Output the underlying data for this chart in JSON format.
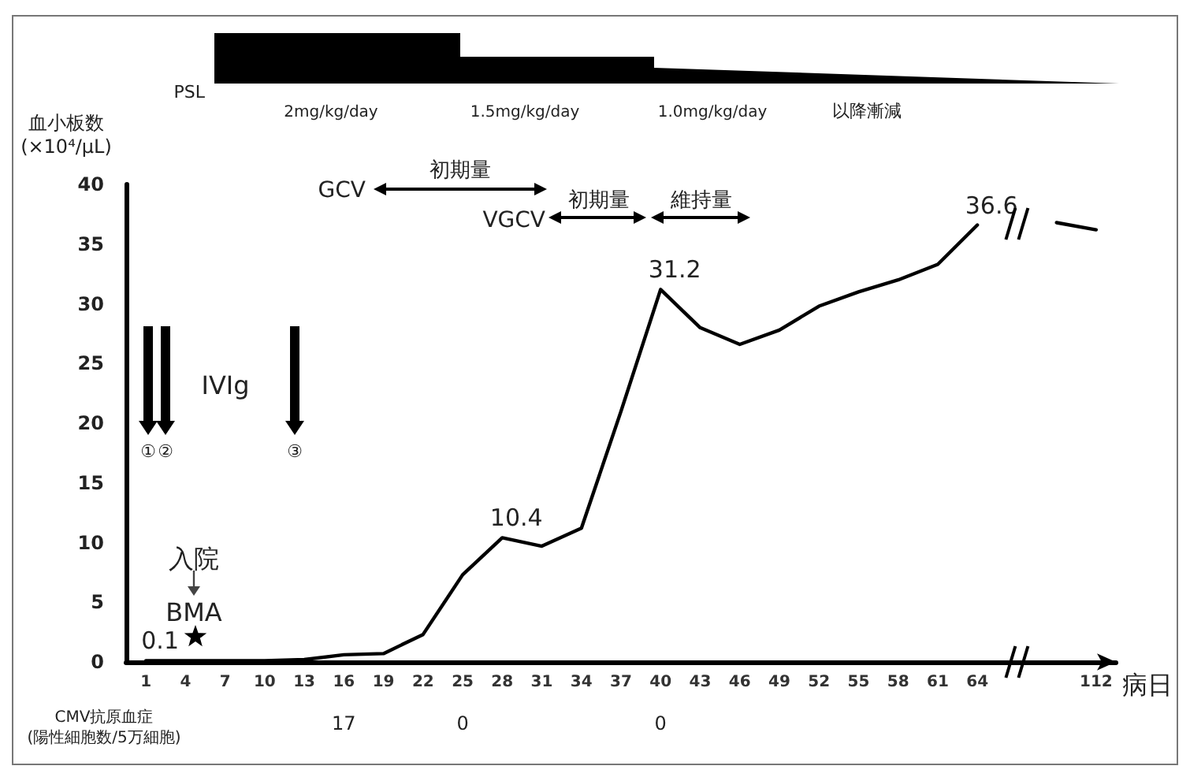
{
  "chart_data": {
    "type": "line",
    "ylabel": "血小板数\n(×10⁴/μL)",
    "xlabel": "病日",
    "categories": [
      "1",
      "4",
      "7",
      "10",
      "13",
      "16",
      "19",
      "22",
      "25",
      "28",
      "31",
      "34",
      "37",
      "40",
      "43",
      "46",
      "49",
      "52",
      "55",
      "58",
      "61",
      "64",
      null,
      null,
      "112"
    ],
    "series": [
      {
        "color": "#000000",
        "values": [
          0.1,
          0.1,
          0.1,
          0.1,
          0.2,
          0.6,
          0.7,
          2.3,
          7.3,
          10.4,
          9.7,
          11.2,
          21.0,
          31.2,
          28.0,
          26.6,
          27.8,
          29.8,
          31.0,
          32.0,
          33.3,
          36.6,
          null,
          null,
          null
        ],
        "value_labels": [
          "0.1",
          null,
          null,
          null,
          null,
          null,
          null,
          null,
          null,
          "10.4",
          null,
          null,
          null,
          "31.2",
          null,
          null,
          null,
          null,
          null,
          null,
          null,
          "36.6",
          null,
          null,
          null
        ]
      },
      {
        "color": "#000000",
        "values": [
          null,
          null,
          null,
          null,
          null,
          null,
          null,
          null,
          null,
          null,
          null,
          null,
          null,
          null,
          null,
          null,
          null,
          null,
          null,
          null,
          null,
          null,
          null,
          36.8,
          36.2
        ]
      }
    ],
    "ylim": [
      0,
      40
    ],
    "yticks": [
      0,
      5,
      10,
      15,
      20,
      25,
      30,
      35,
      40
    ],
    "marker": "none",
    "line_style": "solid",
    "annotations": [
      "PSL",
      "2mg/kg/day",
      "1.5mg/kg/day",
      "1.0mg/kg/day",
      "以降漸減",
      "GCV",
      "初期量",
      "VGCV",
      "初期量",
      "維持量",
      "IVIg",
      "①",
      "②",
      "③",
      "入院",
      "BMA",
      "CMV抗原血症\n(陽性細胞数/5万細胞)",
      "17",
      "0",
      "0"
    ]
  }
}
